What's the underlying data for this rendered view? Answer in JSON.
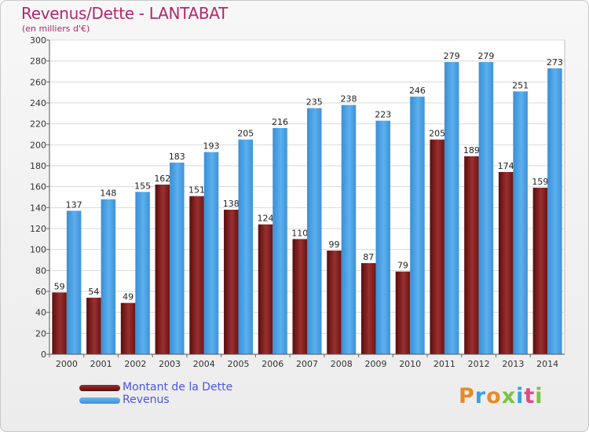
{
  "chart_data": {
    "type": "bar",
    "title": "Revenus/Dette - LANTABAT",
    "subtitle": "(en milliers d'€)",
    "categories": [
      "2000",
      "2001",
      "2002",
      "2003",
      "2004",
      "2005",
      "2006",
      "2007",
      "2008",
      "2009",
      "2010",
      "2011",
      "2012",
      "2013",
      "2014"
    ],
    "series": [
      {
        "name": "Montant de la Dette",
        "color": "#7a1a1a",
        "values": [
          59,
          54,
          49,
          162,
          151,
          138,
          124,
          110,
          99,
          87,
          79,
          205,
          189,
          174,
          159
        ]
      },
      {
        "name": "Revenus",
        "color": "#4ea3e6",
        "values": [
          137,
          148,
          155,
          183,
          193,
          205,
          216,
          235,
          238,
          223,
          246,
          279,
          279,
          251,
          273
        ]
      }
    ],
    "ylim": [
      0,
      300
    ],
    "yticks": [
      0,
      20,
      40,
      60,
      80,
      100,
      120,
      140,
      160,
      180,
      200,
      220,
      240,
      260,
      280,
      300
    ],
    "grid": true,
    "legend_position": "bottom-left"
  },
  "logo": {
    "text": "Proxiti",
    "colors": [
      "#e88a2c",
      "#3aa0d8",
      "#e88a2c",
      "#7cc242",
      "#3aa0d8",
      "#d94c8a",
      "#7cc242"
    ]
  }
}
